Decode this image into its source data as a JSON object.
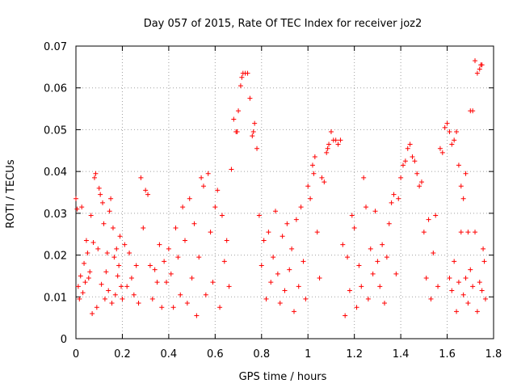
{
  "chart_data": {
    "type": "scatter",
    "title": "Day 057 of 2015, Rate Of TEC Index for receiver joz2",
    "xlabel": "GPS time / hours",
    "ylabel": "ROTI / TECUs",
    "xlim": [
      0,
      1.8
    ],
    "ylim": [
      0,
      0.07
    ],
    "xticks": [
      0,
      0.2,
      0.4,
      0.6,
      0.8,
      1,
      1.2,
      1.4,
      1.6,
      1.8
    ],
    "xtick_labels": [
      "0",
      "0.2",
      "0.4",
      "0.6",
      "0.8",
      "1",
      "1.2",
      "1.4",
      "1.6",
      "1.8"
    ],
    "yticks": [
      0,
      0.01,
      0.02,
      0.03,
      0.04,
      0.05,
      0.06,
      0.07
    ],
    "ytick_labels": [
      "0",
      "0.01",
      "0.02",
      "0.03",
      "0.04",
      "0.05",
      "0.06",
      "0.07"
    ],
    "grid": true,
    "marker": "+",
    "color": "#ff0000",
    "series": [
      {
        "name": "ROTI",
        "points": [
          [
            0.0,
            0.0335
          ],
          [
            0.005,
            0.031
          ],
          [
            0.01,
            0.0125
          ],
          [
            0.015,
            0.0095
          ],
          [
            0.02,
            0.015
          ],
          [
            0.025,
            0.0315
          ],
          [
            0.03,
            0.011
          ],
          [
            0.035,
            0.018
          ],
          [
            0.04,
            0.0135
          ],
          [
            0.045,
            0.0235
          ],
          [
            0.05,
            0.0205
          ],
          [
            0.055,
            0.0145
          ],
          [
            0.06,
            0.016
          ],
          [
            0.065,
            0.0295
          ],
          [
            0.07,
            0.006
          ],
          [
            0.075,
            0.023
          ],
          [
            0.08,
            0.0385
          ],
          [
            0.085,
            0.0395
          ],
          [
            0.09,
            0.0075
          ],
          [
            0.095,
            0.0215
          ],
          [
            0.1,
            0.036
          ],
          [
            0.105,
            0.0345
          ],
          [
            0.11,
            0.013
          ],
          [
            0.115,
            0.0325
          ],
          [
            0.12,
            0.0275
          ],
          [
            0.125,
            0.0095
          ],
          [
            0.13,
            0.016
          ],
          [
            0.135,
            0.0205
          ],
          [
            0.14,
            0.0115
          ],
          [
            0.145,
            0.0305
          ],
          [
            0.15,
            0.0335
          ],
          [
            0.155,
            0.0085
          ],
          [
            0.16,
            0.0265
          ],
          [
            0.165,
            0.0195
          ],
          [
            0.17,
            0.0105
          ],
          [
            0.175,
            0.0215
          ],
          [
            0.18,
            0.015
          ],
          [
            0.185,
            0.0175
          ],
          [
            0.19,
            0.0245
          ],
          [
            0.195,
            0.0125
          ],
          [
            0.2,
            0.0095
          ],
          [
            0.21,
            0.0225
          ],
          [
            0.22,
            0.0125
          ],
          [
            0.23,
            0.0205
          ],
          [
            0.24,
            0.0145
          ],
          [
            0.25,
            0.0105
          ],
          [
            0.26,
            0.0175
          ],
          [
            0.27,
            0.0085
          ],
          [
            0.28,
            0.0385
          ],
          [
            0.29,
            0.0265
          ],
          [
            0.3,
            0.0355
          ],
          [
            0.31,
            0.0345
          ],
          [
            0.32,
            0.0175
          ],
          [
            0.33,
            0.0095
          ],
          [
            0.34,
            0.0165
          ],
          [
            0.35,
            0.0135
          ],
          [
            0.36,
            0.0225
          ],
          [
            0.37,
            0.0075
          ],
          [
            0.38,
            0.0185
          ],
          [
            0.39,
            0.0135
          ],
          [
            0.4,
            0.0215
          ],
          [
            0.41,
            0.0155
          ],
          [
            0.42,
            0.0075
          ],
          [
            0.43,
            0.0265
          ],
          [
            0.44,
            0.0195
          ],
          [
            0.45,
            0.0105
          ],
          [
            0.46,
            0.0315
          ],
          [
            0.47,
            0.0235
          ],
          [
            0.48,
            0.0085
          ],
          [
            0.49,
            0.0335
          ],
          [
            0.5,
            0.0145
          ],
          [
            0.51,
            0.0275
          ],
          [
            0.52,
            0.0055
          ],
          [
            0.53,
            0.0195
          ],
          [
            0.54,
            0.0385
          ],
          [
            0.55,
            0.0365
          ],
          [
            0.56,
            0.0105
          ],
          [
            0.57,
            0.0395
          ],
          [
            0.58,
            0.0255
          ],
          [
            0.59,
            0.0135
          ],
          [
            0.6,
            0.0315
          ],
          [
            0.61,
            0.0355
          ],
          [
            0.62,
            0.0075
          ],
          [
            0.63,
            0.0295
          ],
          [
            0.64,
            0.0185
          ],
          [
            0.65,
            0.0235
          ],
          [
            0.66,
            0.0125
          ],
          [
            0.67,
            0.0405
          ],
          [
            0.68,
            0.0525
          ],
          [
            0.69,
            0.0495
          ],
          [
            0.695,
            0.0495
          ],
          [
            0.7,
            0.0545
          ],
          [
            0.71,
            0.0605
          ],
          [
            0.715,
            0.0625
          ],
          [
            0.72,
            0.0635
          ],
          [
            0.73,
            0.0635
          ],
          [
            0.74,
            0.0635
          ],
          [
            0.75,
            0.0575
          ],
          [
            0.76,
            0.0485
          ],
          [
            0.765,
            0.0495
          ],
          [
            0.77,
            0.0515
          ],
          [
            0.78,
            0.0455
          ],
          [
            0.79,
            0.0295
          ],
          [
            0.8,
            0.0175
          ],
          [
            0.81,
            0.0235
          ],
          [
            0.82,
            0.0095
          ],
          [
            0.83,
            0.0255
          ],
          [
            0.84,
            0.0135
          ],
          [
            0.85,
            0.0195
          ],
          [
            0.86,
            0.0305
          ],
          [
            0.87,
            0.0155
          ],
          [
            0.88,
            0.0085
          ],
          [
            0.89,
            0.0245
          ],
          [
            0.9,
            0.0115
          ],
          [
            0.91,
            0.0275
          ],
          [
            0.92,
            0.0165
          ],
          [
            0.93,
            0.0215
          ],
          [
            0.94,
            0.0065
          ],
          [
            0.95,
            0.0285
          ],
          [
            0.96,
            0.0125
          ],
          [
            0.97,
            0.0315
          ],
          [
            0.98,
            0.0185
          ],
          [
            0.99,
            0.0095
          ],
          [
            1.0,
            0.0365
          ],
          [
            1.01,
            0.0335
          ],
          [
            1.02,
            0.0415
          ],
          [
            1.025,
            0.0395
          ],
          [
            1.03,
            0.0435
          ],
          [
            1.04,
            0.0255
          ],
          [
            1.05,
            0.0145
          ],
          [
            1.06,
            0.0385
          ],
          [
            1.07,
            0.0375
          ],
          [
            1.08,
            0.0445
          ],
          [
            1.085,
            0.0455
          ],
          [
            1.09,
            0.0465
          ],
          [
            1.1,
            0.0495
          ],
          [
            1.11,
            0.0475
          ],
          [
            1.12,
            0.0475
          ],
          [
            1.13,
            0.0465
          ],
          [
            1.14,
            0.0475
          ],
          [
            1.15,
            0.0225
          ],
          [
            1.16,
            0.0055
          ],
          [
            1.17,
            0.0195
          ],
          [
            1.18,
            0.0115
          ],
          [
            1.19,
            0.0295
          ],
          [
            1.2,
            0.0265
          ],
          [
            1.21,
            0.0075
          ],
          [
            1.22,
            0.0175
          ],
          [
            1.23,
            0.0125
          ],
          [
            1.24,
            0.0385
          ],
          [
            1.25,
            0.0315
          ],
          [
            1.26,
            0.0095
          ],
          [
            1.27,
            0.0215
          ],
          [
            1.28,
            0.0155
          ],
          [
            1.29,
            0.0305
          ],
          [
            1.3,
            0.0185
          ],
          [
            1.31,
            0.0125
          ],
          [
            1.32,
            0.0225
          ],
          [
            1.33,
            0.0085
          ],
          [
            1.34,
            0.0195
          ],
          [
            1.35,
            0.0275
          ],
          [
            1.36,
            0.0325
          ],
          [
            1.37,
            0.0345
          ],
          [
            1.38,
            0.0155
          ],
          [
            1.39,
            0.0335
          ],
          [
            1.4,
            0.0385
          ],
          [
            1.41,
            0.0415
          ],
          [
            1.42,
            0.0425
          ],
          [
            1.43,
            0.0455
          ],
          [
            1.44,
            0.0465
          ],
          [
            1.45,
            0.0435
          ],
          [
            1.46,
            0.0425
          ],
          [
            1.47,
            0.0395
          ],
          [
            1.48,
            0.0365
          ],
          [
            1.49,
            0.0375
          ],
          [
            1.5,
            0.0255
          ],
          [
            1.51,
            0.0145
          ],
          [
            1.52,
            0.0285
          ],
          [
            1.53,
            0.0095
          ],
          [
            1.54,
            0.0205
          ],
          [
            1.55,
            0.0295
          ],
          [
            1.56,
            0.0125
          ],
          [
            1.57,
            0.0455
          ],
          [
            1.58,
            0.0445
          ],
          [
            1.59,
            0.0505
          ],
          [
            1.6,
            0.0515
          ],
          [
            1.61,
            0.0495
          ],
          [
            1.62,
            0.0465
          ],
          [
            1.63,
            0.0475
          ],
          [
            1.64,
            0.0495
          ],
          [
            1.65,
            0.0415
          ],
          [
            1.66,
            0.0365
          ],
          [
            1.67,
            0.0335
          ],
          [
            1.68,
            0.0395
          ],
          [
            1.69,
            0.0255
          ],
          [
            1.7,
            0.0545
          ],
          [
            1.71,
            0.0545
          ],
          [
            1.72,
            0.0665
          ],
          [
            1.73,
            0.0635
          ],
          [
            1.74,
            0.0645
          ],
          [
            1.745,
            0.0655
          ],
          [
            1.75,
            0.0655
          ],
          [
            1.755,
            0.0215
          ],
          [
            1.76,
            0.0185
          ],
          [
            1.765,
            0.0095
          ],
          [
            1.75,
            0.0115
          ],
          [
            1.74,
            0.0135
          ],
          [
            1.73,
            0.0065
          ],
          [
            1.72,
            0.0255
          ],
          [
            1.71,
            0.0125
          ],
          [
            1.7,
            0.0165
          ],
          [
            1.69,
            0.0085
          ],
          [
            1.68,
            0.0145
          ],
          [
            1.67,
            0.0105
          ],
          [
            1.66,
            0.0255
          ],
          [
            1.65,
            0.0135
          ],
          [
            1.64,
            0.0065
          ],
          [
            1.63,
            0.0185
          ],
          [
            1.62,
            0.0115
          ],
          [
            1.61,
            0.0145
          ]
        ]
      }
    ]
  }
}
